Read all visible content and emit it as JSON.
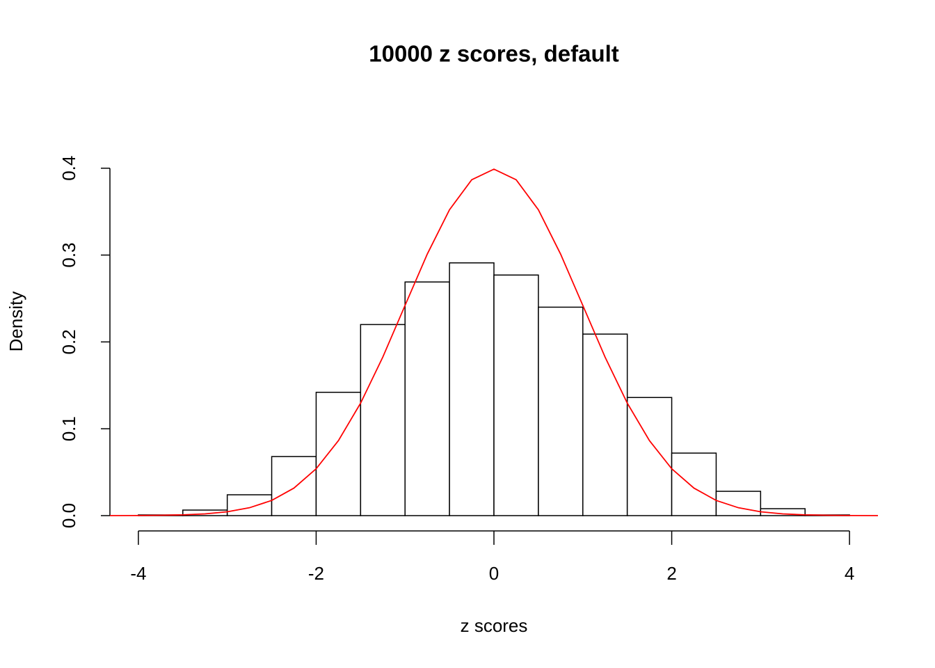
{
  "chart_data": {
    "type": "histogram",
    "title": "10000 z scores, default",
    "xlabel": "z scores",
    "ylabel": "Density",
    "bins": [
      -4,
      -3.5,
      -3,
      -2.5,
      -2,
      -1.5,
      -1,
      -0.5,
      0,
      0.5,
      1,
      1.5,
      2,
      2.5,
      3,
      3.5,
      4
    ],
    "values": [
      0.0008,
      0.0064,
      0.024,
      0.068,
      0.142,
      0.22,
      0.269,
      0.291,
      0.277,
      0.24,
      0.209,
      0.136,
      0.072,
      0.028,
      0.008,
      0.0008
    ],
    "color": "#ffffff",
    "edgecolor": "#000000",
    "xlim": [
      -4.32,
      4.32
    ],
    "ylim": [
      -0.016,
      0.415
    ],
    "xticks": [
      -4,
      -2,
      0,
      2,
      4
    ],
    "yticks": [
      {
        "value": 0,
        "label": "0.0"
      },
      0.1,
      0.2,
      0.3,
      0.4
    ],
    "lines": [
      {
        "type": "line",
        "color": "#ff0000",
        "x": [
          -4.32,
          -4,
          -3.75,
          -3.5,
          -3.25,
          -3,
          -2.75,
          -2.5,
          -2.25,
          -2,
          -1.75,
          -1.5,
          -1.25,
          -1,
          -0.75,
          -0.5,
          -0.25,
          0,
          0.25,
          0.5,
          0.75,
          1,
          1.25,
          1.5,
          1.75,
          2,
          2.25,
          2.5,
          2.75,
          3,
          3.25,
          3.5,
          3.75,
          4,
          4.32
        ],
        "values": [
          0,
          0.0001,
          0.0004,
          0.0009,
          0.002,
          0.0044,
          0.0091,
          0.0175,
          0.0317,
          0.054,
          0.0863,
          0.1295,
          0.1826,
          0.242,
          0.3011,
          0.3521,
          0.3867,
          0.3989,
          0.3867,
          0.3521,
          0.3011,
          0.242,
          0.1826,
          0.1295,
          0.0863,
          0.054,
          0.0317,
          0.0175,
          0.0091,
          0.0044,
          0.002,
          0.0009,
          0.0004,
          0.0001,
          0
        ]
      }
    ]
  }
}
